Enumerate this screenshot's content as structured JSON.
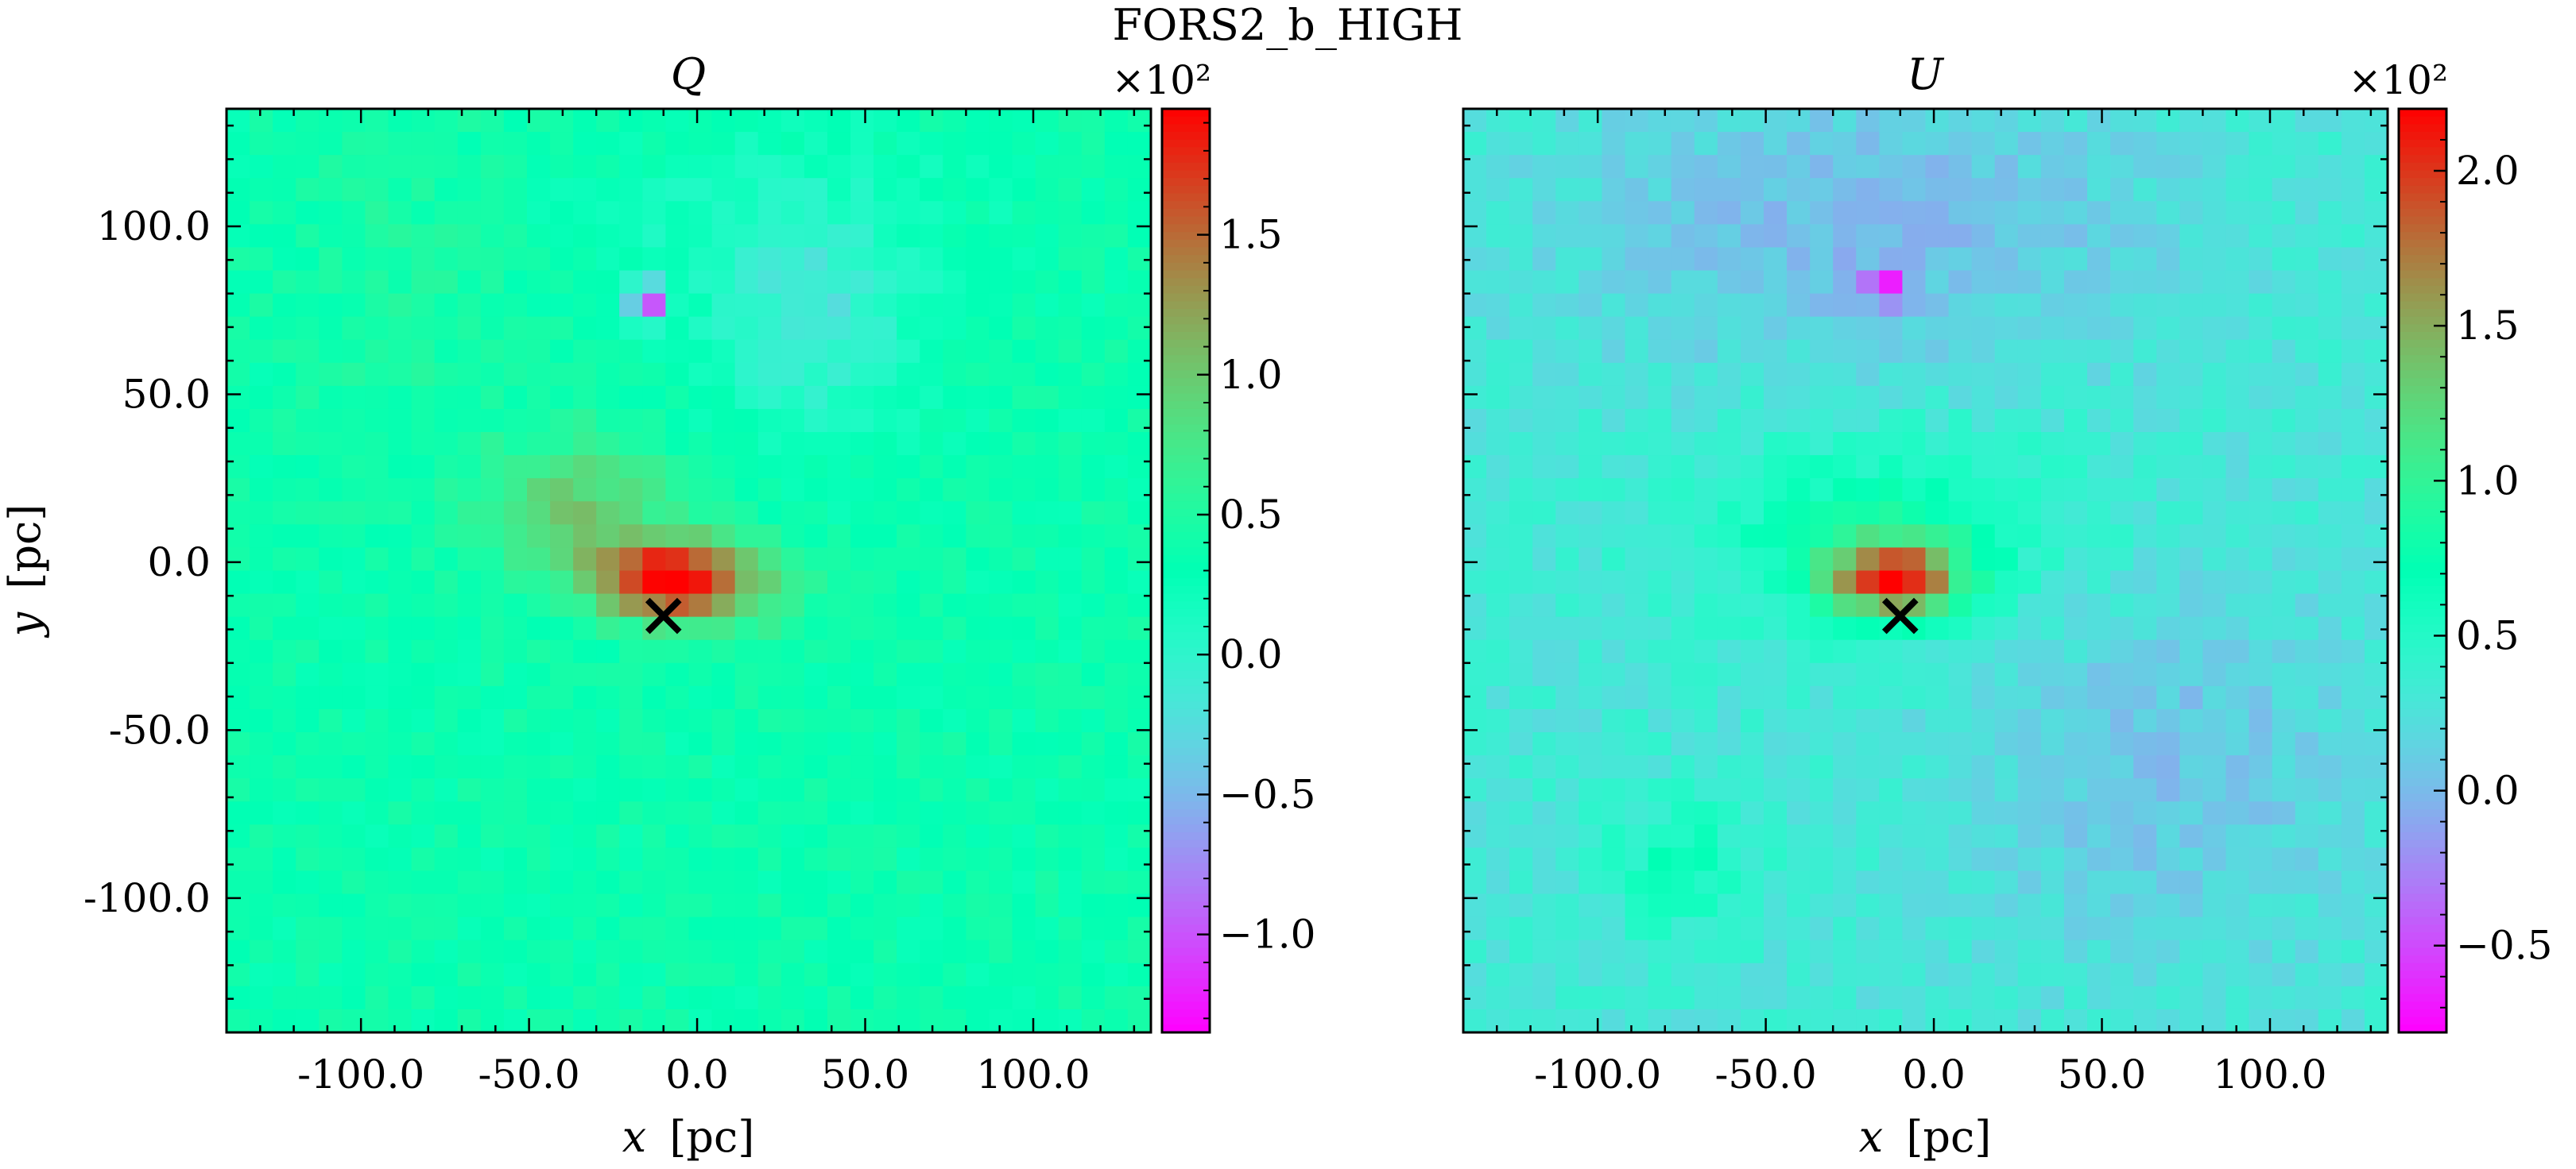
{
  "figure": {
    "suptitle": "FORS2_b_HIGH"
  },
  "chart_data": [
    {
      "type": "heatmap",
      "title": "Q",
      "xlabel_var": "x",
      "ylabel_var": "y",
      "unit_label": "[pc]",
      "xlim": [
        -140,
        135
      ],
      "ylim": [
        -140,
        135
      ],
      "x_ticks": [
        -100,
        -50,
        0,
        50,
        100
      ],
      "x_tick_labels": [
        "-100.0",
        "-50.0",
        "0.0",
        "50.0",
        "100.0"
      ],
      "y_ticks": [
        -100,
        -50,
        0,
        50,
        100
      ],
      "y_tick_labels": [
        "-100.0",
        "-50.0",
        "0.0",
        "50.0",
        "100.0"
      ],
      "grid_size": 40,
      "colormap": "rainbow",
      "marker": {
        "shape": "x",
        "x": -10,
        "y": -16,
        "color": "#000000"
      },
      "colorbar": {
        "multiplier": "×10²",
        "min": -1.35,
        "max": 1.95,
        "ticks": [
          -1.0,
          -0.5,
          0.0,
          0.5,
          1.0,
          1.5
        ],
        "tick_labels": [
          "−1.0",
          "−0.5",
          "0.0",
          "0.5",
          "1.0",
          "1.5"
        ]
      },
      "background_level": 0.35,
      "features": [
        {
          "x": -10,
          "y": -5,
          "sx": 14,
          "sy": 8,
          "amp": 1.4
        },
        {
          "x": -35,
          "y": 15,
          "sx": 20,
          "sy": 16,
          "amp": 0.6
        },
        {
          "x": 10,
          "y": -8,
          "sx": 16,
          "sy": 10,
          "amp": 0.5
        },
        {
          "x": -85,
          "y": 85,
          "sx": 25,
          "sy": 40,
          "amp": 0.12
        },
        {
          "x": 35,
          "y": 70,
          "sx": 20,
          "sy": 22,
          "amp": -0.45
        },
        {
          "x": 20,
          "y": 100,
          "sx": 40,
          "sy": 20,
          "amp": -0.2
        },
        {
          "x": -15,
          "y": 78,
          "sx": 4,
          "sy": 4,
          "amp": -1.6
        }
      ]
    },
    {
      "type": "heatmap",
      "title": "U",
      "xlabel_var": "x",
      "unit_label": "[pc]",
      "xlim": [
        -140,
        135
      ],
      "ylim": [
        -140,
        135
      ],
      "x_ticks": [
        -100,
        -50,
        0,
        50,
        100
      ],
      "x_tick_labels": [
        "-100.0",
        "-50.0",
        "0.0",
        "50.0",
        "100.0"
      ],
      "grid_size": 40,
      "colormap": "rainbow",
      "marker": {
        "shape": "x",
        "x": -10,
        "y": -16,
        "color": "#000000"
      },
      "colorbar": {
        "multiplier": "×10²",
        "min": -0.78,
        "max": 2.2,
        "ticks": [
          -0.5,
          0.0,
          0.5,
          1.0,
          1.5,
          2.0
        ],
        "tick_labels": [
          "−0.5",
          "0.0",
          "0.5",
          "1.0",
          "1.5",
          "2.0"
        ]
      },
      "background_level": 0.3,
      "features": [
        {
          "x": -12,
          "y": -5,
          "sx": 14,
          "sy": 8,
          "amp": 1.6
        },
        {
          "x": -15,
          "y": 10,
          "sx": 40,
          "sy": 20,
          "amp": 0.45
        },
        {
          "x": -75,
          "y": -90,
          "sx": 15,
          "sy": 15,
          "amp": 0.35
        },
        {
          "x": -20,
          "y": 100,
          "sx": 60,
          "sy": 30,
          "amp": -0.3
        },
        {
          "x": 70,
          "y": -60,
          "sx": 40,
          "sy": 40,
          "amp": -0.25
        },
        {
          "x": -15,
          "y": 82,
          "sx": 4,
          "sy": 4,
          "amp": -1.0
        }
      ]
    }
  ]
}
